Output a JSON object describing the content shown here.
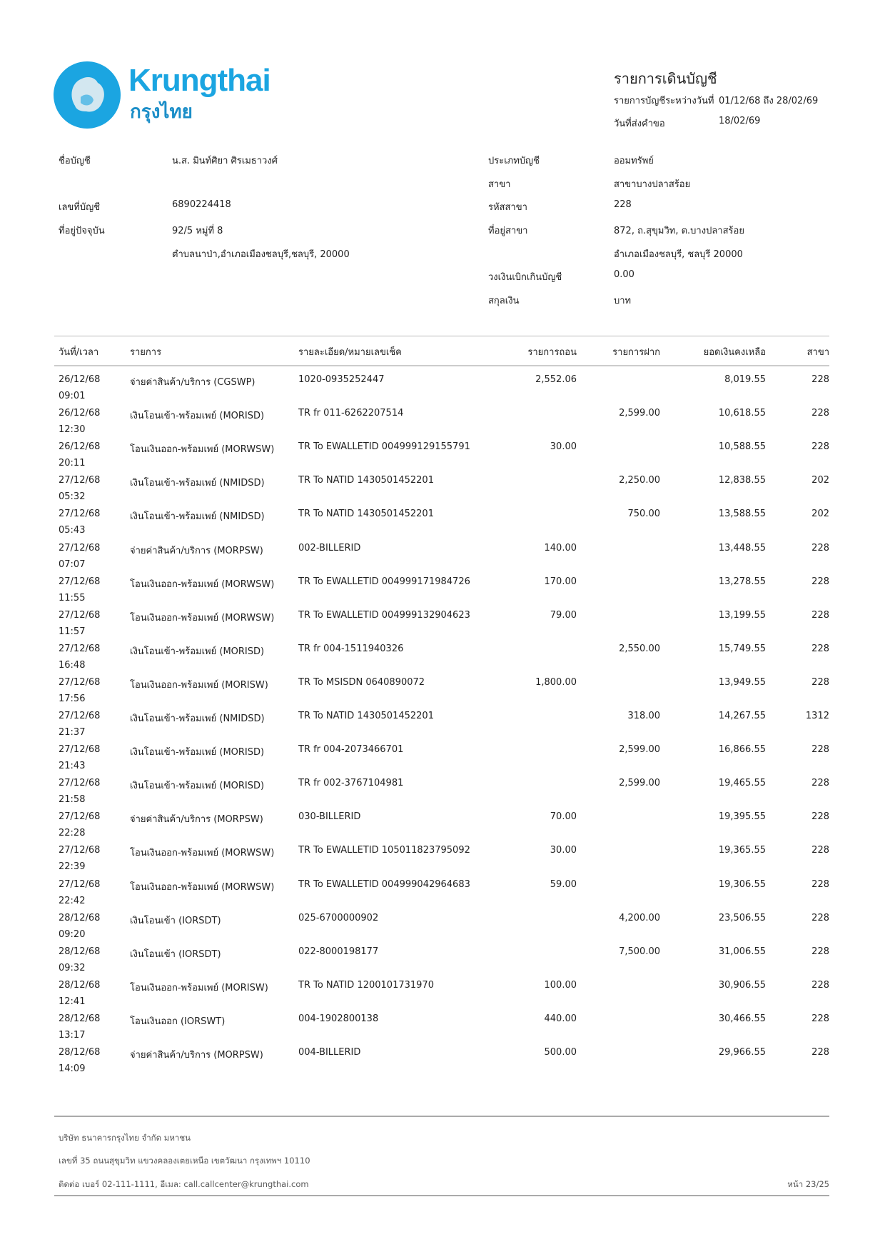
{
  "brand": {
    "name_en": "Krungthai",
    "name_th": "กรุงไทย",
    "color": "#1ba5e1"
  },
  "header": {
    "title": "รายการเดินบัญชี",
    "period_label": "รายการบัญชีระหว่างวันที่",
    "period_value": "01/12/68 ถึง 28/02/69",
    "request_label": "วันที่ส่งคำขอ",
    "request_value": "18/02/69"
  },
  "account": {
    "name_label": "ชื่อบัญชี",
    "name_value": "น.ส. มินท์ศิยา ศิรเมธาวงศ์",
    "number_label": "เลขที่บัญชี",
    "number_value": "6890224418",
    "address_label": "ที่อยู่ปัจจุบัน",
    "address_line1": "92/5 หมู่ที่ 8",
    "address_line2": "ตำบลนาป่า,อำเภอเมืองชลบุรี,ชลบุรี, 20000",
    "type_label": "ประเภทบัญชี",
    "type_value": "ออมทรัพย์",
    "branch_label": "สาขา",
    "branch_value": "สาขาบางปลาสร้อย",
    "branch_code_label": "รหัสสาขา",
    "branch_code_value": "228",
    "branch_address_label": "ที่อยู่สาขา",
    "branch_address_line1": "872, ถ.สุขุมวิท, ต.บางปลาสร้อย",
    "branch_address_line2": "อำเภอเมืองชลบุรี, ชลบุรี 20000",
    "overdraft_label": "วงเงินเบิกเกินบัญชี",
    "overdraft_value": "0.00",
    "currency_label": "สกุลเงิน",
    "currency_value": "บาท"
  },
  "table": {
    "columns": [
      "วันที่/เวลา",
      "รายการ",
      "รายละเอียด/หมายเลขเช็ค",
      "รายการถอน",
      "รายการฝาก",
      "ยอดเงินคงเหลือ",
      "สาขา"
    ],
    "rows": [
      {
        "date": "26/12/68",
        "time": "09:01",
        "desc": "จ่ายค่าสินค้า/บริการ (CGSWP)",
        "detail": "1020-0935252447",
        "withdraw": "2,552.06",
        "deposit": "",
        "balance": "8,019.55",
        "branch": "228"
      },
      {
        "date": "26/12/68",
        "time": "12:30",
        "desc": "เงินโอนเข้า-พร้อมเพย์ (MORISD)",
        "detail": "TR fr 011-6262207514",
        "withdraw": "",
        "deposit": "2,599.00",
        "balance": "10,618.55",
        "branch": "228"
      },
      {
        "date": "26/12/68",
        "time": "20:11",
        "desc": "โอนเงินออก-พร้อมเพย์ (MORWSW)",
        "detail": "TR To EWALLETID 004999129155791",
        "withdraw": "30.00",
        "deposit": "",
        "balance": "10,588.55",
        "branch": "228"
      },
      {
        "date": "27/12/68",
        "time": "05:32",
        "desc": "เงินโอนเข้า-พร้อมเพย์ (NMIDSD)",
        "detail": "TR To NATID 1430501452201",
        "withdraw": "",
        "deposit": "2,250.00",
        "balance": "12,838.55",
        "branch": "202"
      },
      {
        "date": "27/12/68",
        "time": "05:43",
        "desc": "เงินโอนเข้า-พร้อมเพย์ (NMIDSD)",
        "detail": "TR To NATID 1430501452201",
        "withdraw": "",
        "deposit": "750.00",
        "balance": "13,588.55",
        "branch": "202"
      },
      {
        "date": "27/12/68",
        "time": "07:07",
        "desc": "จ่ายค่าสินค้า/บริการ (MORPSW)",
        "detail": "002-BILLERID",
        "withdraw": "140.00",
        "deposit": "",
        "balance": "13,448.55",
        "branch": "228"
      },
      {
        "date": "27/12/68",
        "time": "11:55",
        "desc": "โอนเงินออก-พร้อมเพย์ (MORWSW)",
        "detail": "TR To EWALLETID 004999171984726",
        "withdraw": "170.00",
        "deposit": "",
        "balance": "13,278.55",
        "branch": "228"
      },
      {
        "date": "27/12/68",
        "time": "11:57",
        "desc": "โอนเงินออก-พร้อมเพย์ (MORWSW)",
        "detail": "TR To EWALLETID 004999132904623",
        "withdraw": "79.00",
        "deposit": "",
        "balance": "13,199.55",
        "branch": "228"
      },
      {
        "date": "27/12/68",
        "time": "16:48",
        "desc": "เงินโอนเข้า-พร้อมเพย์ (MORISD)",
        "detail": "TR fr 004-1511940326",
        "withdraw": "",
        "deposit": "2,550.00",
        "balance": "15,749.55",
        "branch": "228"
      },
      {
        "date": "27/12/68",
        "time": "17:56",
        "desc": "โอนเงินออก-พร้อมเพย์ (MORISW)",
        "detail": "TR To MSISDN 0640890072",
        "withdraw": "1,800.00",
        "deposit": "",
        "balance": "13,949.55",
        "branch": "228"
      },
      {
        "date": "27/12/68",
        "time": "21:37",
        "desc": "เงินโอนเข้า-พร้อมเพย์ (NMIDSD)",
        "detail": "TR To NATID 1430501452201",
        "withdraw": "",
        "deposit": "318.00",
        "balance": "14,267.55",
        "branch": "1312"
      },
      {
        "date": "27/12/68",
        "time": "21:43",
        "desc": "เงินโอนเข้า-พร้อมเพย์ (MORISD)",
        "detail": "TR fr 004-2073466701",
        "withdraw": "",
        "deposit": "2,599.00",
        "balance": "16,866.55",
        "branch": "228"
      },
      {
        "date": "27/12/68",
        "time": "21:58",
        "desc": "เงินโอนเข้า-พร้อมเพย์ (MORISD)",
        "detail": "TR fr 002-3767104981",
        "withdraw": "",
        "deposit": "2,599.00",
        "balance": "19,465.55",
        "branch": "228"
      },
      {
        "date": "27/12/68",
        "time": "22:28",
        "desc": "จ่ายค่าสินค้า/บริการ (MORPSW)",
        "detail": "030-BILLERID",
        "withdraw": "70.00",
        "deposit": "",
        "balance": "19,395.55",
        "branch": "228"
      },
      {
        "date": "27/12/68",
        "time": "22:39",
        "desc": "โอนเงินออก-พร้อมเพย์ (MORWSW)",
        "detail": "TR To EWALLETID 105011823795092",
        "withdraw": "30.00",
        "deposit": "",
        "balance": "19,365.55",
        "branch": "228"
      },
      {
        "date": "27/12/68",
        "time": "22:42",
        "desc": "โอนเงินออก-พร้อมเพย์ (MORWSW)",
        "detail": "TR To EWALLETID 004999042964683",
        "withdraw": "59.00",
        "deposit": "",
        "balance": "19,306.55",
        "branch": "228"
      },
      {
        "date": "28/12/68",
        "time": "09:20",
        "desc": "เงินโอนเข้า (IORSDT)",
        "detail": "025-6700000902",
        "withdraw": "",
        "deposit": "4,200.00",
        "balance": "23,506.55",
        "branch": "228"
      },
      {
        "date": "28/12/68",
        "time": "09:32",
        "desc": "เงินโอนเข้า (IORSDT)",
        "detail": "022-8000198177",
        "withdraw": "",
        "deposit": "7,500.00",
        "balance": "31,006.55",
        "branch": "228"
      },
      {
        "date": "28/12/68",
        "time": "12:41",
        "desc": "โอนเงินออก-พร้อมเพย์ (MORISW)",
        "detail": "TR To NATID 1200101731970",
        "withdraw": "100.00",
        "deposit": "",
        "balance": "30,906.55",
        "branch": "228"
      },
      {
        "date": "28/12/68",
        "time": "13:17",
        "desc": "โอนเงินออก (IORSWT)",
        "detail": "004-1902800138",
        "withdraw": "440.00",
        "deposit": "",
        "balance": "30,466.55",
        "branch": "228"
      },
      {
        "date": "28/12/68",
        "time": "14:09",
        "desc": "จ่ายค่าสินค้า/บริการ (MORPSW)",
        "detail": "004-BILLERID",
        "withdraw": "500.00",
        "deposit": "",
        "balance": "29,966.55",
        "branch": "228"
      }
    ]
  },
  "footer": {
    "company": "บริษัท ธนาคารกรุงไทย จำกัด มหาชน",
    "address": "เลขที่ 35 ถนนสุขุมวิท แขวงคลองเตยเหนือ เขตวัฒนา กรุงเทพฯ 10110",
    "contact": "ติดต่อ เบอร์ 02-111-1111, อีเมล: call.callcenter@krungthai.com",
    "page": "หน้า 23/25"
  }
}
